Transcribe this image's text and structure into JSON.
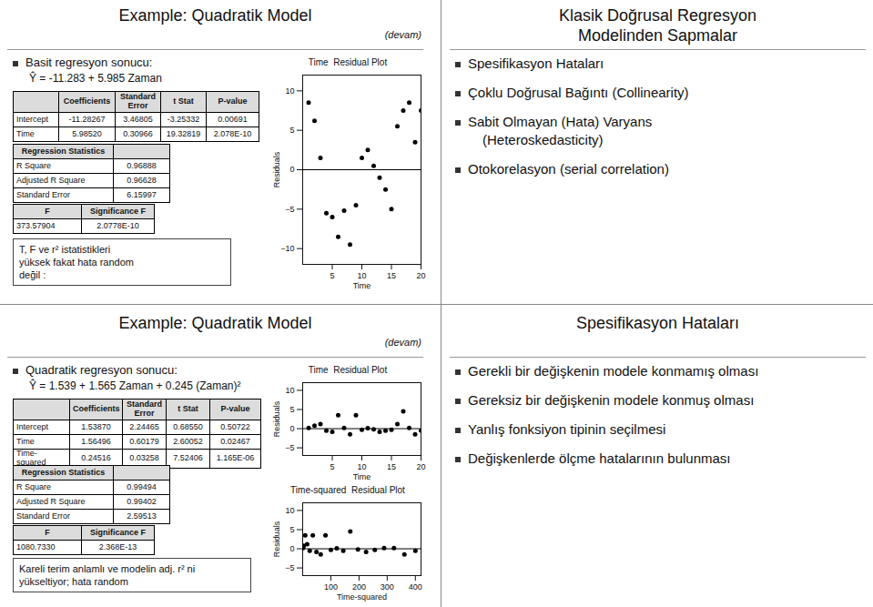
{
  "chart_data": [
    {
      "type": "text",
      "title": "Example: Quadratik Model",
      "subtitle": "(devam)",
      "annotations": [
        "Basit regresyon sonucu:"
      ],
      "equation": "Ŷ = -11.283 + 5.985 Zaman"
    },
    {
      "type": "table",
      "columns": [
        null,
        "Coefficients",
        "Standard\nError",
        "t Stat",
        "P-value"
      ],
      "rows": [
        [
          "Intercept",
          "-11.28267",
          "3.46805",
          "-3.25332",
          "0.00691"
        ],
        [
          "Time",
          "5.98520",
          "0.30966",
          "19.32819",
          "2.078E-10"
        ]
      ]
    },
    {
      "type": "table",
      "columns": [
        "Regression Statistics",
        null
      ],
      "rows": [
        [
          "R Square",
          "0.96888"
        ],
        [
          "Adjusted R Square",
          "0.96628"
        ],
        [
          "Standard Error",
          "6.15997"
        ]
      ]
    },
    {
      "type": "table",
      "columns": [
        "F",
        "Significance F"
      ],
      "rows": [
        [
          "373.57904",
          "2.0778E-10"
        ]
      ]
    },
    {
      "type": "note",
      "annotations": [
        "T, F ve r² istatistikleri\nyüksek fakat hata random\ndeğil :"
      ]
    },
    {
      "type": "scatter",
      "title": "Time  Residual Plot",
      "x_label": "Time",
      "y_label": "Residuals",
      "color": "#000000",
      "x": [
        1,
        2,
        3,
        4,
        5,
        6,
        7,
        8,
        9,
        10,
        11,
        12,
        13,
        14,
        15,
        16,
        17,
        18,
        19,
        20
      ],
      "values": [
        8.5,
        6.2,
        1.5,
        -5.5,
        -6.0,
        -8.5,
        -5.2,
        -9.5,
        -4.5,
        1.5,
        2.5,
        0.5,
        -1.0,
        -2.5,
        -5.0,
        5.5,
        7.5,
        8.5,
        3.5,
        7.5
      ],
      "xlim": [
        0,
        20
      ],
      "ylim": [
        -12,
        12
      ],
      "xticks": [
        5,
        10,
        15,
        20
      ],
      "yticks": [
        -10,
        -5,
        0,
        5,
        10
      ]
    },
    {
      "type": "text",
      "title": "Klasik Doğrusal Regresyon\nModelinden Sapmalar",
      "annotations": [
        "Spesifikasyon Hataları",
        "Çoklu Doğrusal Bağıntı (Collinearity)",
        "Sabit Olmayan (Hata) Varyans\n(Heteroskedasticity)",
        "Otokorelasyon (serial correlation)"
      ]
    },
    {
      "type": "text",
      "title": "Example: Quadratik Model",
      "subtitle": "(devam)",
      "annotations": [
        "Quadratik regresyon sonucu:"
      ],
      "equation": "Ŷ = 1.539 + 1.565 Zaman + 0.245 (Zaman)²"
    },
    {
      "type": "table",
      "columns": [
        null,
        "Coefficients",
        "Standard\nError",
        "t Stat",
        "P-value"
      ],
      "rows": [
        [
          "Intercept",
          "1.53870",
          "2.24465",
          "0.68550",
          "0.50722"
        ],
        [
          "Time",
          "1.56496",
          "0.60179",
          "2.60052",
          "0.02467"
        ],
        [
          "Time-squared",
          "0.24516",
          "0.03258",
          "7.52406",
          "1.165E-06"
        ]
      ]
    },
    {
      "type": "table",
      "columns": [
        "Regression Statistics",
        null
      ],
      "rows": [
        [
          "R Square",
          "0.99494"
        ],
        [
          "Adjusted R Square",
          "0.99402"
        ],
        [
          "Standard Error",
          "2.59513"
        ]
      ]
    },
    {
      "type": "table",
      "columns": [
        "F",
        "Significance F"
      ],
      "rows": [
        [
          "1080.7330",
          "2.368E-13"
        ]
      ]
    },
    {
      "type": "note",
      "annotations": [
        "Kareli terim anlamlı ve  modelin adj. r² ni\nyükseltiyor; hata random"
      ]
    },
    {
      "type": "scatter",
      "title": "Time  Residual Plot",
      "x_label": "Time",
      "y_label": "Residuals",
      "color": "#000000",
      "x": [
        1,
        2,
        3,
        4,
        5,
        6,
        7,
        8,
        9,
        10,
        11,
        12,
        13,
        14,
        15,
        16,
        17,
        18,
        19,
        20
      ],
      "values": [
        0.2,
        0.8,
        1.2,
        -0.5,
        -0.8,
        3.5,
        0.2,
        -1.5,
        3.5,
        -0.3,
        0.1,
        -0.2,
        -0.8,
        -0.5,
        -0.3,
        1.2,
        4.5,
        0.2,
        -1.5,
        -0.5
      ],
      "xlim": [
        0,
        20
      ],
      "ylim": [
        -7,
        12
      ],
      "xticks": [
        5,
        10,
        15,
        20
      ],
      "yticks": [
        -5,
        0,
        5,
        10
      ]
    },
    {
      "type": "scatter",
      "title": "Time-squared  Residual Plot",
      "x_label": "Time-squared",
      "y_label": "Residuals",
      "color": "#000000",
      "x": [
        1,
        4,
        9,
        16,
        25,
        36,
        49,
        64,
        81,
        100,
        121,
        144,
        169,
        196,
        225,
        256,
        289,
        324,
        361,
        400
      ],
      "values": [
        0.2,
        0.8,
        3.5,
        1.2,
        -0.5,
        3.5,
        -0.8,
        -1.5,
        3.5,
        -0.3,
        0.1,
        -0.5,
        4.5,
        -0.2,
        -0.8,
        -0.3,
        0.2,
        0.2,
        -1.5,
        -0.5
      ],
      "xlim": [
        0,
        420
      ],
      "ylim": [
        -7,
        12
      ],
      "xticks": [
        100,
        200,
        300,
        400
      ],
      "yticks": [
        -5,
        0,
        5,
        10
      ]
    },
    {
      "type": "text",
      "title": "Spesifikasyon Hataları",
      "annotations": [
        "Gerekli bir değişkenin modele konmamış olması",
        "Gereksiz bir değişkenin modele konmuş olması",
        "Yanlış fonksiyon tipinin seçilmesi",
        "Değişkenlerde ölçme hatalarının bulunması"
      ]
    }
  ]
}
